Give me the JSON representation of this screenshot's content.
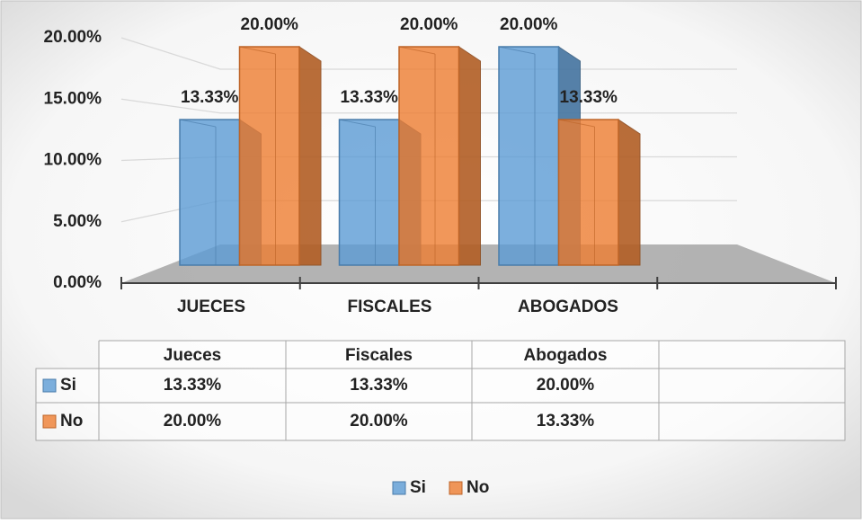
{
  "chart_data": {
    "type": "bar3d",
    "categories": [
      "JUECES",
      "FISCALES",
      "ABOGADOS",
      null
    ],
    "series": [
      {
        "name": "Si",
        "color": "#5b9bd5",
        "values": [
          13.33,
          13.33,
          20,
          null
        ],
        "value_labels": [
          "13.33%",
          "13.33%",
          "20.00%",
          null
        ]
      },
      {
        "name": "No",
        "color": "#ed7d31",
        "values": [
          20,
          20,
          13.33,
          null
        ],
        "value_labels": [
          "20.00%",
          "20.00%",
          "13.33%",
          null
        ]
      }
    ],
    "ylim": [
      0,
      20
    ],
    "yticks": [
      {
        "value": 0,
        "label": "0.00%"
      },
      {
        "value": 5,
        "label": "5.00%"
      },
      {
        "value": 10,
        "label": "10.00%"
      },
      {
        "value": 15,
        "label": "15.00%"
      },
      {
        "value": 20,
        "label": "20.00%"
      }
    ],
    "grid": true,
    "data_table": {
      "columns": [
        "Jueces",
        "Fiscales",
        "Abogados",
        null
      ]
    },
    "legend": "bottom"
  }
}
